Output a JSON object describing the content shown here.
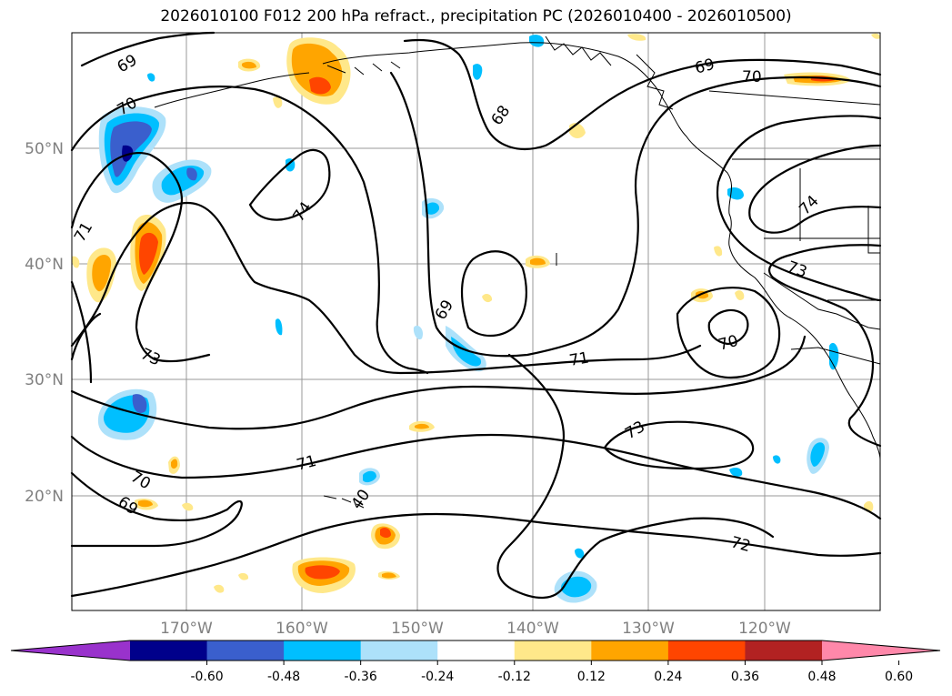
{
  "title": "2026010100 F012 200 hPa refract., precipitation PC (2026010400 - 2026010500)",
  "axes": {
    "lon_ticks": [
      "170°W",
      "160°W",
      "150°W",
      "140°W",
      "130°W",
      "120°W"
    ],
    "lat_ticks": [
      "50°N",
      "40°N",
      "30°N",
      "20°N"
    ],
    "tick_color": "#808080"
  },
  "contour_labels": [
    "69",
    "70",
    "71",
    "73",
    "74",
    "68",
    "69",
    "70",
    "73",
    "74",
    "69",
    "71",
    "70",
    "73",
    "72",
    "71",
    "70",
    "69",
    "40"
  ],
  "colorbar": {
    "ticks": [
      "-0.60",
      "-0.48",
      "-0.36",
      "-0.24",
      "-0.12",
      "0.12",
      "0.24",
      "0.36",
      "0.48",
      "0.60"
    ],
    "colors": [
      "#9932CC",
      "#00008B",
      "#3A5FCD",
      "#00BFFF",
      "#ADE1FA",
      "#FFFFFF",
      "#FFE88A",
      "#FFA500",
      "#FF4500",
      "#B22222",
      "#FF88AA"
    ]
  }
}
